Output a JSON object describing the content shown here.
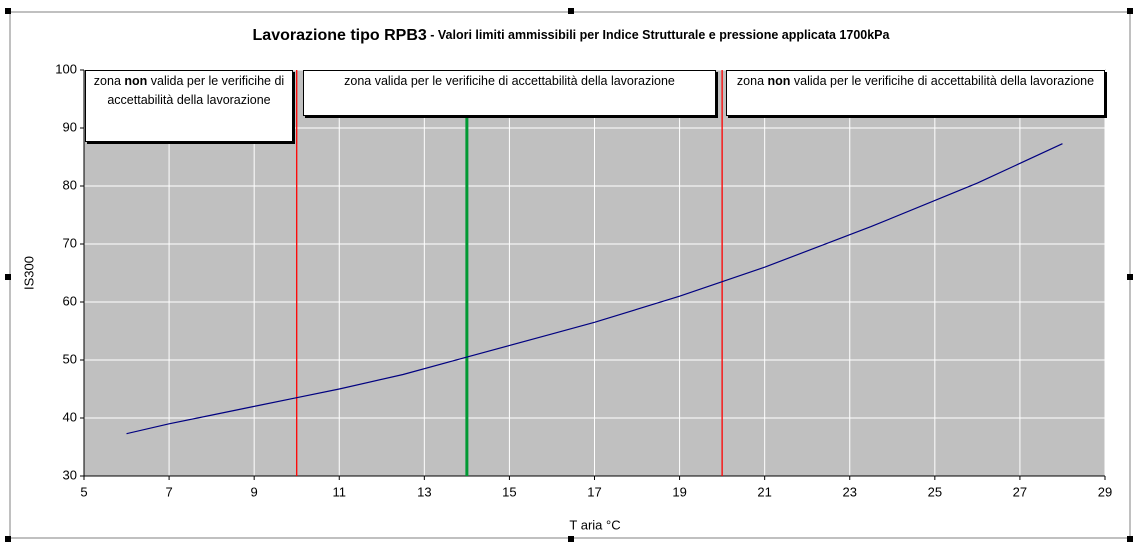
{
  "chart_data": {
    "type": "line",
    "title": "Lavorazione tipo RPB3",
    "subtitle": " - Valori limiti ammissibili per Indice Strutturale e pressione applicata 1700kPa",
    "x_label": "T aria °C",
    "y_label": "IS300",
    "x": [
      6,
      7,
      8,
      9,
      10,
      11,
      12.5,
      14,
      16,
      17,
      19,
      20,
      21,
      23.5,
      26,
      28
    ],
    "values": [
      37.3,
      39,
      40.5,
      42,
      43.5,
      45,
      47.5,
      50.5,
      54.5,
      56.5,
      61,
      63.5,
      66,
      73,
      80.5,
      87.3
    ],
    "color": "#000080",
    "xlim": [
      5,
      29
    ],
    "xticks": [
      5,
      7,
      9,
      11,
      13,
      15,
      17,
      19,
      21,
      23,
      25,
      27,
      29
    ],
    "ylim": [
      30,
      100
    ],
    "yticks": [
      30,
      40,
      50,
      60,
      70,
      80,
      90,
      100
    ],
    "grid": true,
    "vlines": [
      {
        "x": 10,
        "color": "#ff0000"
      },
      {
        "x": 14,
        "color": "#009933"
      },
      {
        "x": 20,
        "color": "#ff0000"
      }
    ],
    "annotations": [
      {
        "parts": [
          {
            "text": "zona "
          },
          {
            "text": "non",
            "bold": true
          },
          {
            "text": " valida per le verificihe di accettabilità della lavorazione"
          }
        ]
      },
      {
        "parts": [
          {
            "text": "zona valida per le verificihe di accettabilità della lavorazione"
          }
        ]
      },
      {
        "parts": [
          {
            "text": "zona "
          },
          {
            "text": "non",
            "bold": true
          },
          {
            "text": " valida per le verificihe di accettabilità della lavorazione"
          }
        ]
      }
    ]
  }
}
